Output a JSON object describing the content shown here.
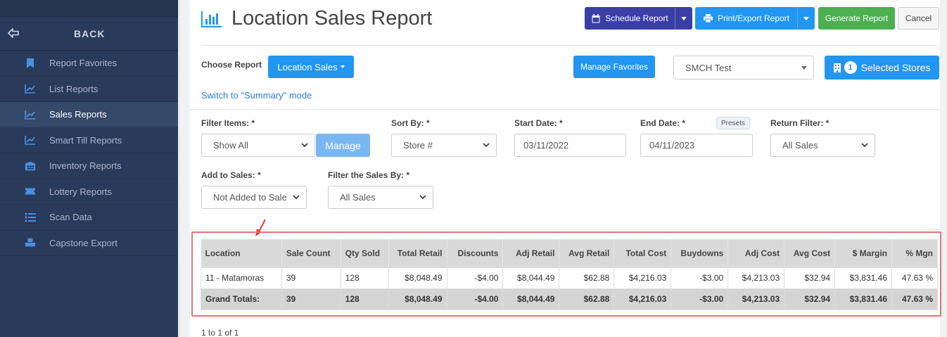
{
  "sidebar": {
    "back_label": "BACK",
    "items": [
      {
        "label": "Report Favorites",
        "icon": "bookmark-icon",
        "active": false
      },
      {
        "label": "List Reports",
        "icon": "line-chart-icon",
        "active": false
      },
      {
        "label": "Sales Reports",
        "icon": "line-chart-icon",
        "active": true
      },
      {
        "label": "Smart Till Reports",
        "icon": "line-chart-icon",
        "active": false
      },
      {
        "label": "Inventory Reports",
        "icon": "warehouse-icon",
        "active": false
      },
      {
        "label": "Lottery Reports",
        "icon": "ticket-icon",
        "active": false
      },
      {
        "label": "Scan Data",
        "icon": "list-icon",
        "active": false
      },
      {
        "label": "Capstone Export",
        "icon": "boxes-icon",
        "active": false
      }
    ]
  },
  "header": {
    "title": "Location Sales Report",
    "schedule_label": "Schedule Report",
    "print_label": "Print/Export Report",
    "generate_label": "Generate Report",
    "cancel_label": "Cancel"
  },
  "choose": {
    "label": "Choose Report",
    "report_button": "Location Sales",
    "manage_favorites": "Manage Favorites",
    "store_group": "SMCH Test",
    "selected_count": "1",
    "selected_label": "Selected Stores",
    "switch_link": "Switch to \"Summary\" mode"
  },
  "filters": {
    "filter_items_label": "Filter Items: *",
    "filter_items_value": "Show All",
    "manage_label": "Manage",
    "sort_by_label": "Sort By: *",
    "sort_by_value": "Store #",
    "start_date_label": "Start Date: *",
    "start_date_value": "03/11/2022",
    "end_date_label": "End Date: *",
    "end_date_value": "04/11/2023",
    "presets_label": "Presets",
    "return_filter_label": "Return Filter: *",
    "return_filter_value": "All Sales",
    "add_to_sales_label": "Add to Sales: *",
    "add_to_sales_value": "Not Added to Sales",
    "filter_sales_by_label": "Filter the Sales By: *",
    "filter_sales_by_value": "All Sales"
  },
  "table": {
    "columns": [
      "Location",
      "Sale Count",
      "Qty Sold",
      "Total Retail",
      "Discounts",
      "Adj Retail",
      "Avg Retail",
      "Total Cost",
      "Buydowns",
      "Adj Cost",
      "Avg Cost",
      "$ Margin",
      "% Mgn"
    ],
    "rows": [
      [
        "11 - Matamoras",
        "39",
        "128",
        "$8,048.49",
        "-$4.00",
        "$8,044.49",
        "$62.88",
        "$4,216.03",
        "-$3.00",
        "$4,213.03",
        "$32.94",
        "$3,831.46",
        "47.63 %"
      ]
    ],
    "totals": [
      "Grand Totals:",
      "39",
      "128",
      "$8,048.49",
      "-$4.00",
      "$8,044.49",
      "$62.88",
      "$4,216.03",
      "-$3.00",
      "$4,213.03",
      "$32.94",
      "$3,831.46",
      "47.63 %"
    ]
  },
  "pager": "1 to 1 of 1",
  "colors": {
    "sidebar_bg": "#2a3a5a",
    "navy_button": "#3a3fa6",
    "blue_button": "#2196f3",
    "green_button": "#4caf50",
    "highlight_border": "#e57373"
  }
}
